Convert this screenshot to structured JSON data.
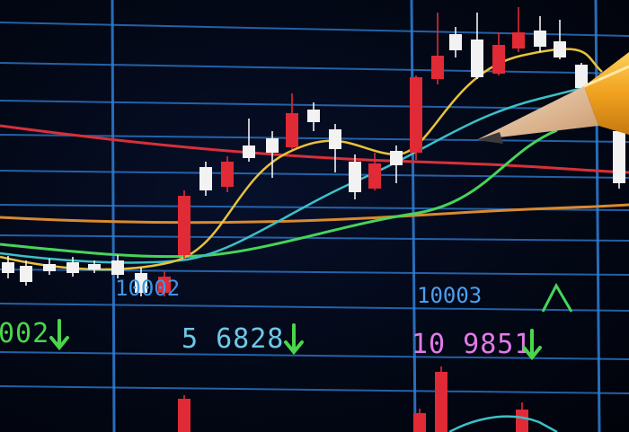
{
  "colors": {
    "grid": "#2f7fd6",
    "bull": "#e02a35",
    "bear": "#f2f2f2",
    "ma_yellow": "#e8c23a",
    "ma_cyan": "#3cc0c8",
    "ma_green": "#47d45a",
    "ma_red": "#d8303a",
    "ma_orange": "#d98a30",
    "text_green": "#4ad64a",
    "text_cyan": "#6ec8e6",
    "text_magenta": "#e27ae8"
  },
  "labels": {
    "axis_left": "10002",
    "axis_right": "10003",
    "readout_left": "002",
    "readout_mid": "5 6828",
    "readout_right": "10 9851"
  },
  "objects": [
    "pencil-icon",
    "up-caret-icon",
    "down-arrow-icon"
  ]
}
